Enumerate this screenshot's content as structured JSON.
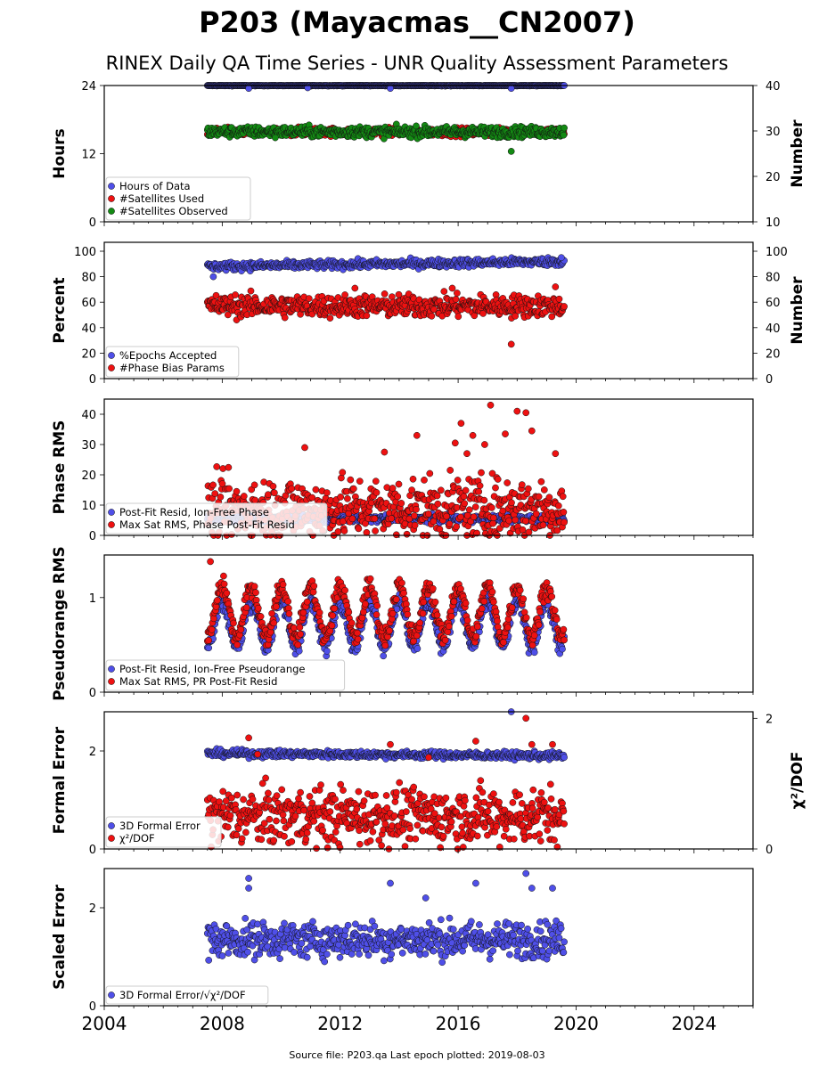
{
  "title": "P203 (Mayacmas__CN2007)",
  "subtitle": "RINEX Daily QA Time Series - UNR Quality Assessment Parameters",
  "footer": "Source file: P203.qa Last epoch plotted: 2019-08-03",
  "x_axis": {
    "min": 2004,
    "max": 2026,
    "ticks": [
      2004,
      2008,
      2012,
      2016,
      2020,
      2024
    ]
  },
  "colors": {
    "blue": "#4f4fe8",
    "red": "#ee1111",
    "green": "#138a13",
    "edge": "#111111"
  },
  "chart_data": [
    {
      "type": "scatter",
      "panel": "hours-satellites",
      "ylabel": "Hours",
      "ylim": [
        0,
        24
      ],
      "yticks": [
        0,
        12,
        24
      ],
      "y2label": "Number",
      "y2lim": [
        10,
        40
      ],
      "y2ticks": [
        10,
        20,
        30,
        40
      ],
      "legend": {
        "placement": "lower-left"
      },
      "series": [
        {
          "name": "Hours of Data",
          "color": "blue",
          "axis": "left",
          "x_start": 2007.5,
          "x_end": 2019.6,
          "level": 24,
          "spread": 0.05,
          "outliers": [
            [
              2008.9,
              23.5
            ],
            [
              2010.9,
              23.6
            ],
            [
              2013.7,
              23.5
            ],
            [
              2017.8,
              23.5
            ]
          ]
        },
        {
          "name": "#Satellites Used",
          "color": "red",
          "axis": "right",
          "x_start": 2007.5,
          "x_end": 2019.6,
          "level": 29.8,
          "spread": 0.6,
          "outliers": [
            [
              2009.5,
              30.0
            ]
          ]
        },
        {
          "name": "#Satellites Observed",
          "color": "green",
          "axis": "right",
          "x_start": 2007.5,
          "x_end": 2019.6,
          "level": 29.8,
          "spread": 0.8,
          "outliers": [
            [
              2017.8,
              25.5
            ],
            [
              2009.8,
              28.5
            ]
          ]
        }
      ]
    },
    {
      "type": "scatter",
      "panel": "percent",
      "ylabel": "Percent",
      "ylim": [
        0,
        107
      ],
      "yticks": [
        0,
        20,
        40,
        60,
        80,
        100
      ],
      "y2label": "Number",
      "y2lim": [
        0,
        107
      ],
      "y2ticks": [
        0,
        20,
        40,
        60,
        80,
        100
      ],
      "legend": {
        "placement": "lower-left"
      },
      "series": [
        {
          "name": "%Epochs Accepted",
          "color": "blue",
          "axis": "left",
          "x_start": 2007.5,
          "x_end": 2019.6,
          "level": 88,
          "trend": 4,
          "spread": 2.2,
          "outliers": [
            [
              2007.7,
              80
            ],
            [
              2019.5,
              95
            ]
          ]
        },
        {
          "name": "#Phase Bias Params",
          "color": "red",
          "axis": "left",
          "x_start": 2007.5,
          "x_end": 2019.6,
          "level": 57,
          "trend": 0,
          "spread": 6,
          "outliers": [
            [
              2017.8,
              27
            ],
            [
              2015.8,
              71
            ],
            [
              2012.5,
              71
            ],
            [
              2019.3,
              72
            ]
          ]
        }
      ]
    },
    {
      "type": "scatter",
      "panel": "phase-rms",
      "ylabel": "Phase RMS",
      "ylim": [
        0,
        45
      ],
      "yticks": [
        0,
        10,
        20,
        30,
        40
      ],
      "legend": {
        "placement": "lower-left"
      },
      "series": [
        {
          "name": "Post-Fit Resid, Ion-Free Phase",
          "color": "blue",
          "axis": "left",
          "x_start": 2007.5,
          "x_end": 2019.6,
          "level": 5.5,
          "spread": 0.8,
          "outliers": []
        },
        {
          "name": "Max Sat RMS, Phase Post-Fit Resid",
          "color": "red",
          "axis": "left",
          "x_start": 2007.5,
          "x_end": 2019.6,
          "level": 9,
          "spread": 7,
          "outliers": [
            [
              2010.8,
              29
            ],
            [
              2014.6,
              33
            ],
            [
              2016.1,
              37
            ],
            [
              2017.1,
              43
            ],
            [
              2018.0,
              41
            ],
            [
              2018.3,
              40.5
            ],
            [
              2018.5,
              34.5
            ],
            [
              2016.5,
              33
            ],
            [
              2016.9,
              30
            ],
            [
              2017.6,
              33.5
            ],
            [
              2019.3,
              27
            ],
            [
              2015.9,
              30.5
            ],
            [
              2013.5,
              27.5
            ],
            [
              2016.3,
              27
            ]
          ]
        }
      ]
    },
    {
      "type": "scatter",
      "panel": "pseudorange-rms",
      "ylabel": "Pseudorange RMS",
      "ylim": [
        0,
        1.45
      ],
      "yticks": [
        0,
        1
      ],
      "legend": {
        "placement": "lower-left"
      },
      "series": [
        {
          "name": "Post-Fit Resid, Ion-Free Pseudorange",
          "color": "blue",
          "axis": "left",
          "x_start": 2007.5,
          "x_end": 2019.6,
          "level": 0.72,
          "amplitude": 0.24,
          "spread": 0.06,
          "outliers": []
        },
        {
          "name": "Max Sat RMS, PR Post-Fit Resid",
          "color": "red",
          "axis": "left",
          "x_start": 2007.5,
          "x_end": 2019.6,
          "level": 0.85,
          "amplitude": 0.27,
          "spread": 0.07,
          "outliers": [
            [
              2007.6,
              1.38
            ]
          ]
        }
      ]
    },
    {
      "type": "scatter",
      "panel": "formal-error",
      "ylabel": "Formal Error",
      "ylim": [
        0,
        2.8
      ],
      "yticks": [
        0,
        2
      ],
      "y2label": "χ²/DOF",
      "y2lim": [
        0,
        2.1
      ],
      "y2ticks": [
        0,
        2
      ],
      "legend": {
        "placement": "lower-left"
      },
      "series": [
        {
          "name": "3D Formal Error",
          "color": "blue",
          "axis": "left",
          "x_start": 2007.5,
          "x_end": 2019.6,
          "level": 1.95,
          "trend": -0.05,
          "spread": 0.05,
          "outliers": [
            [
              2017.8,
              2.8
            ]
          ]
        },
        {
          "name": "χ²/DOF",
          "color": "red",
          "axis": "right",
          "x_start": 2007.5,
          "x_end": 2019.6,
          "level": 0.5,
          "spread": 0.3,
          "outliers": [
            [
              2008.9,
              1.7
            ],
            [
              2013.7,
              1.6
            ],
            [
              2016.6,
              1.65
            ],
            [
              2018.3,
              2.0
            ],
            [
              2018.5,
              1.6
            ],
            [
              2019.2,
              1.6
            ],
            [
              2009.2,
              1.45
            ],
            [
              2015.0,
              1.4
            ]
          ]
        }
      ]
    },
    {
      "type": "scatter",
      "panel": "scaled-error",
      "ylabel": "Scaled Error",
      "ylim": [
        0,
        2.8
      ],
      "yticks": [
        0,
        2
      ],
      "legend": {
        "placement": "lower-left"
      },
      "series": [
        {
          "name": "3D Formal Error/√χ²/DOF",
          "color": "blue",
          "axis": "left",
          "x_start": 2007.5,
          "x_end": 2019.6,
          "level": 1.35,
          "spread": 0.25,
          "outliers": [
            [
              2008.9,
              2.6
            ],
            [
              2008.9,
              2.4
            ],
            [
              2013.7,
              2.5
            ],
            [
              2016.6,
              2.5
            ],
            [
              2018.3,
              2.7
            ],
            [
              2018.5,
              2.4
            ],
            [
              2019.2,
              2.4
            ],
            [
              2014.9,
              2.2
            ]
          ]
        }
      ]
    }
  ]
}
